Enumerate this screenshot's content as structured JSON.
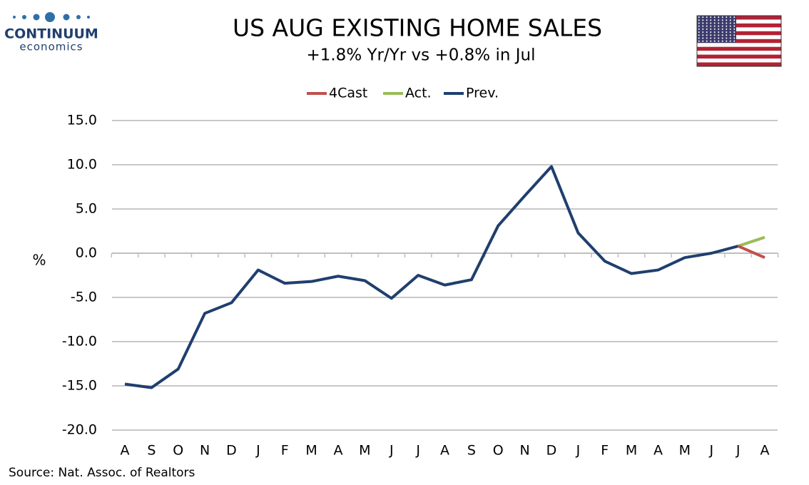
{
  "logo": {
    "name": "CONTINUUM",
    "tagline": "economics"
  },
  "chart_data": {
    "type": "line",
    "title": "US AUG EXISTING HOME SALES",
    "subtitle": "+1.8% Yr/Yr vs +0.8% in Jul",
    "y_label": "%",
    "source": "Source: Nat. Assoc. of Realtors",
    "categories": [
      "A",
      "S",
      "O",
      "N",
      "D",
      "J",
      "F",
      "M",
      "A",
      "M",
      "J",
      "J",
      "A",
      "S",
      "O",
      "N",
      "D",
      "J",
      "F",
      "M",
      "A",
      "M",
      "J",
      "J",
      "A"
    ],
    "series": [
      {
        "name": "4Cast",
        "color": "#c0504d",
        "values": [
          null,
          null,
          null,
          null,
          null,
          null,
          null,
          null,
          null,
          null,
          null,
          null,
          null,
          null,
          null,
          null,
          null,
          null,
          null,
          null,
          null,
          null,
          null,
          0.8,
          -0.5
        ]
      },
      {
        "name": "Act.",
        "color": "#9bbb59",
        "values": [
          null,
          null,
          null,
          null,
          null,
          null,
          null,
          null,
          null,
          null,
          null,
          null,
          null,
          null,
          null,
          null,
          null,
          null,
          null,
          null,
          null,
          null,
          null,
          0.8,
          1.8
        ]
      },
      {
        "name": "Prev.",
        "color": "#1f3f6e",
        "values": [
          -14.8,
          -15.2,
          -13.1,
          -6.8,
          -5.6,
          -1.9,
          -3.4,
          -3.2,
          -2.6,
          -3.1,
          -5.1,
          -2.5,
          -3.6,
          -3.0,
          3.1,
          6.5,
          9.8,
          2.3,
          -0.9,
          -2.3,
          -1.9,
          -0.5,
          0.0,
          0.8,
          null
        ]
      }
    ],
    "ylim": [
      -20,
      15
    ],
    "yticks": [
      {
        "value": -20,
        "label": "-20.0"
      },
      {
        "value": -15,
        "label": "-15.0"
      },
      {
        "value": -10,
        "label": "-10.0"
      },
      {
        "value": -5,
        "label": "-5.0"
      },
      {
        "value": 0,
        "label": "0.0"
      },
      {
        "value": 5,
        "label": "5.0"
      },
      {
        "value": 10,
        "label": "10.0"
      },
      {
        "value": 15,
        "label": "15.0"
      }
    ],
    "grid": true,
    "legend": "top"
  }
}
